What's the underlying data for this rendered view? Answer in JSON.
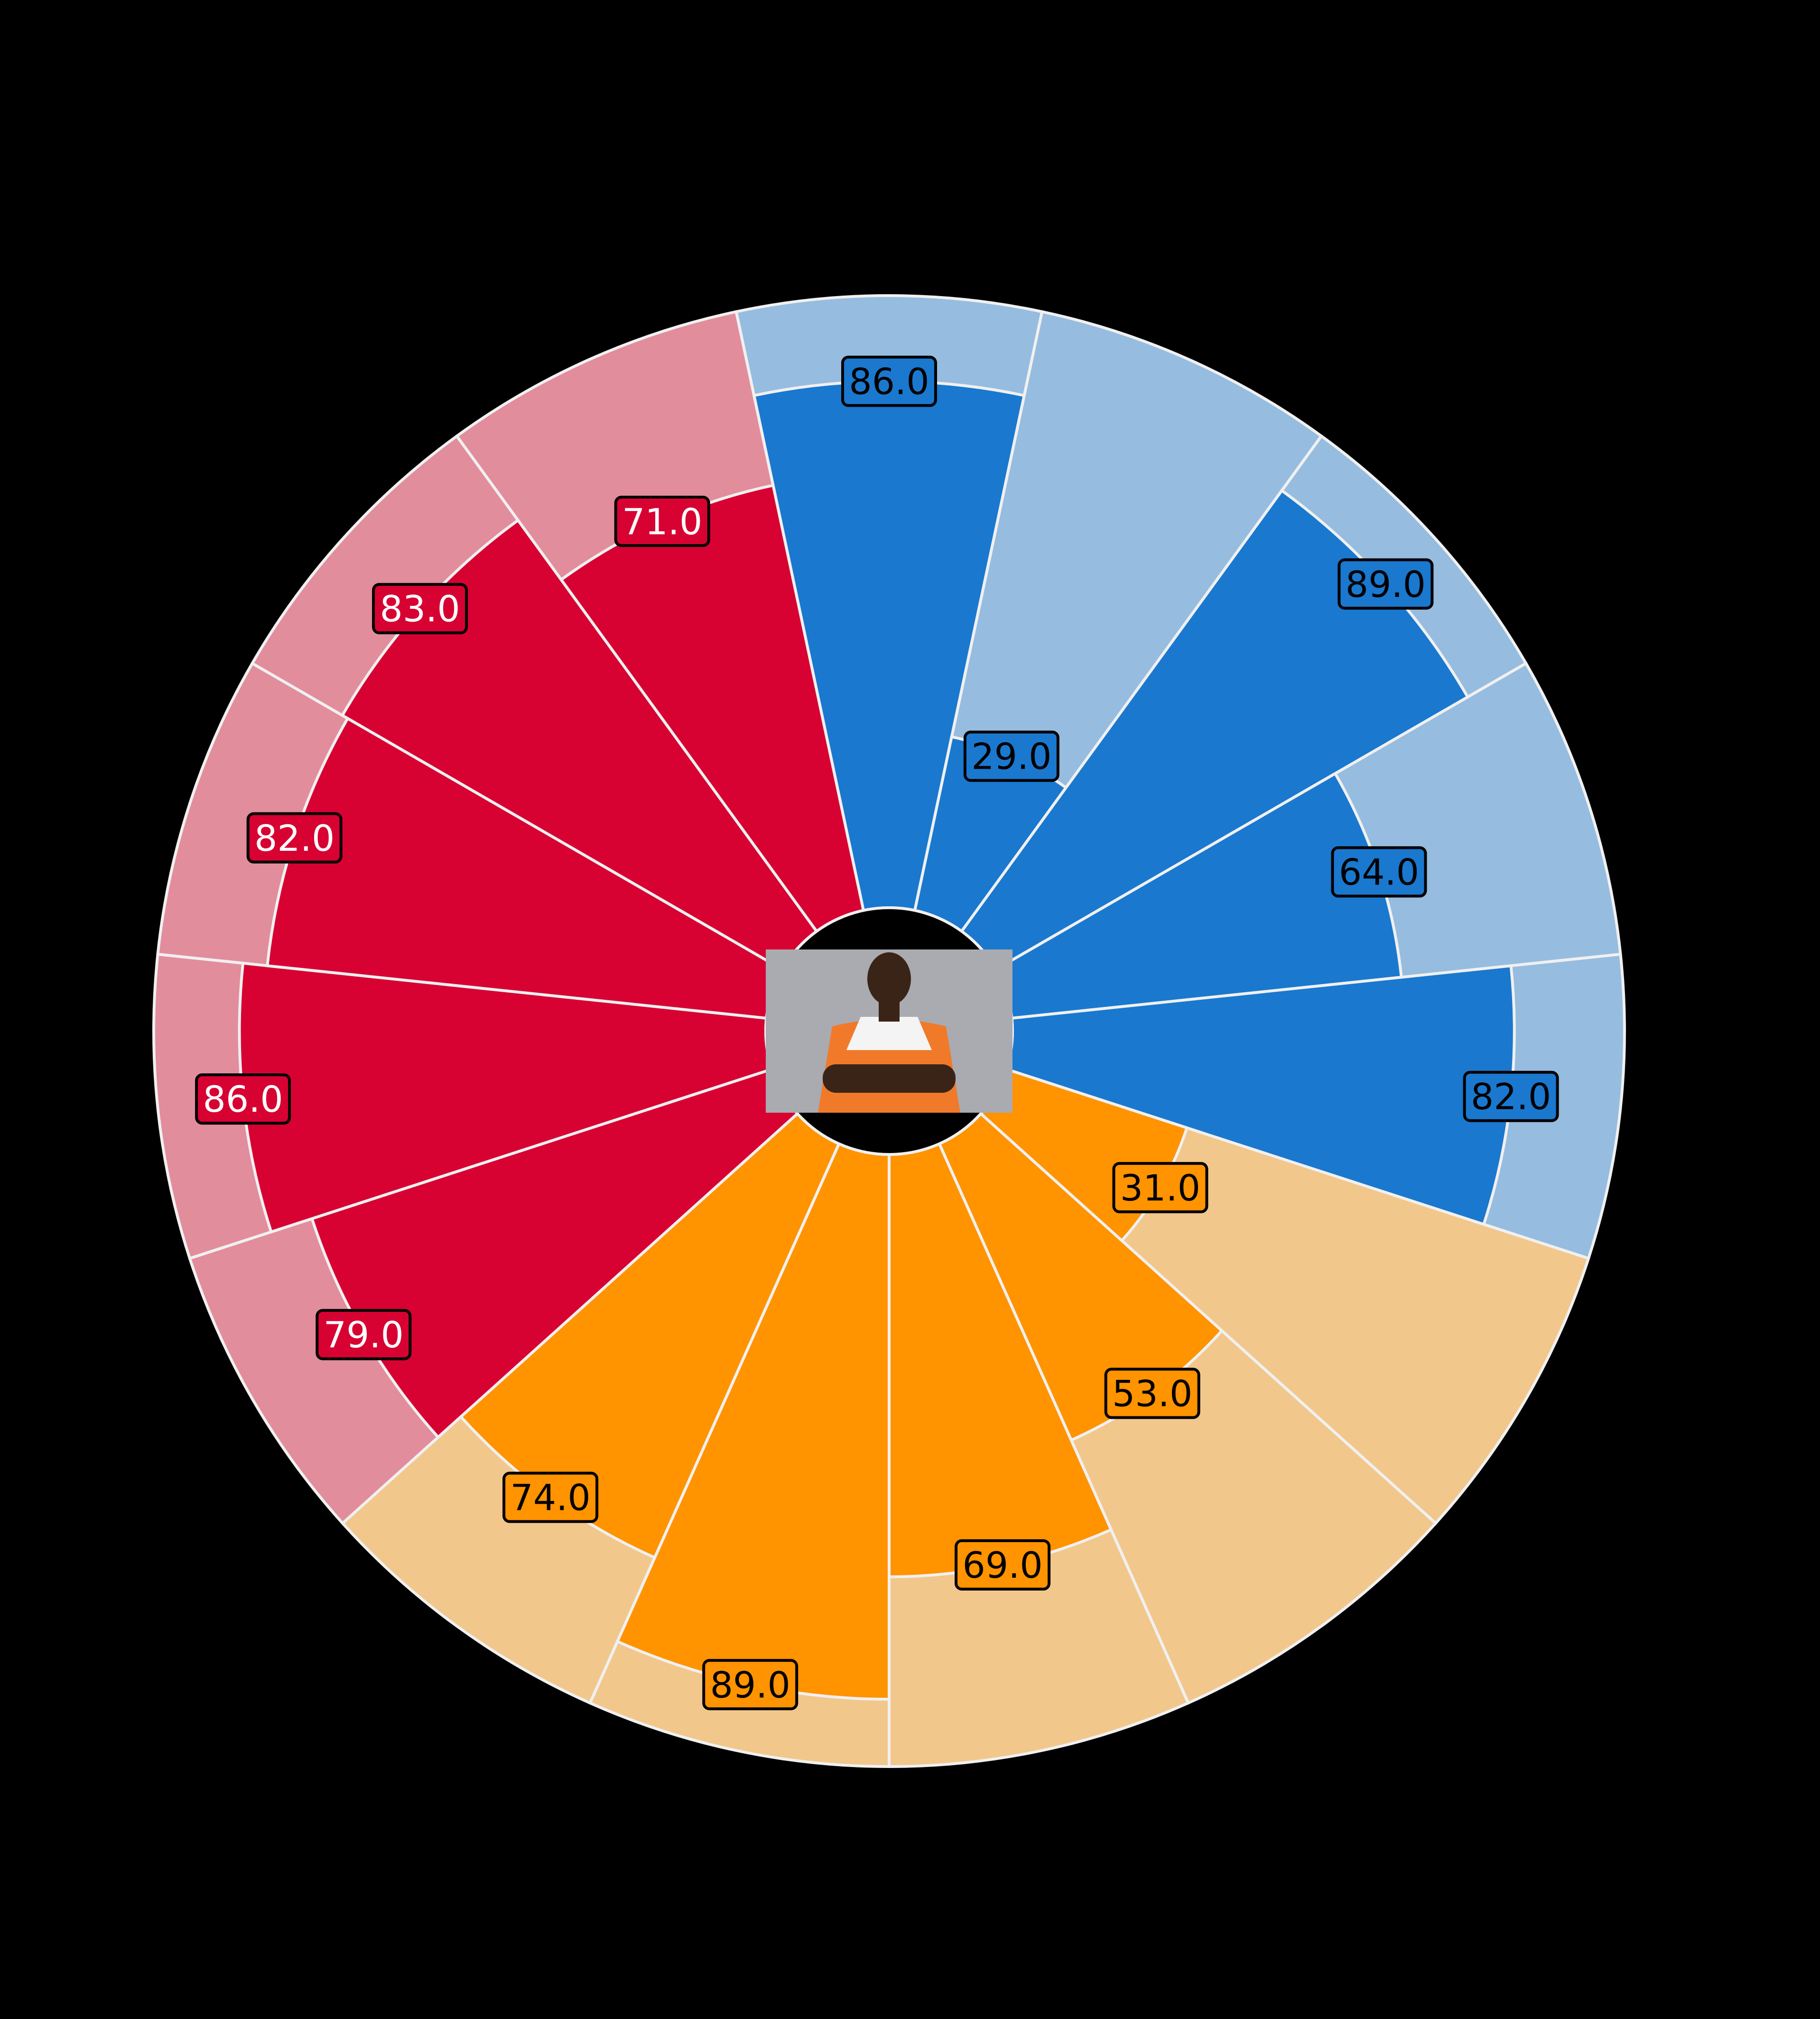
{
  "chart_data": {
    "type": "pizza",
    "title": "",
    "subtitle": "",
    "value_range": [
      0,
      100
    ],
    "center_image": "player-photo",
    "background_color": "#000000",
    "separator_color": "#f0f0f0",
    "segment_order": "clockwise-from-top",
    "series": [
      {
        "group": "blue",
        "color": "#1a78cf",
        "background_color": "#96bce0",
        "label_text_color": "#000000",
        "values": [
          86.0,
          29.0,
          89.0,
          64.0,
          82.0
        ],
        "labels": [
          "86.0",
          "29.0",
          "89.0",
          "64.0",
          "82.0"
        ]
      },
      {
        "group": "orange",
        "color": "#ff9300",
        "background_color": "#f2c78c",
        "label_text_color": "#000000",
        "values": [
          31.0,
          53.0,
          69.0,
          89.0,
          74.0
        ],
        "labels": [
          "31.0",
          "53.0",
          "69.0",
          "89.0",
          "74.0"
        ]
      },
      {
        "group": "red",
        "color": "#d70232",
        "background_color": "#e28d9c",
        "label_text_color": "#ffffff",
        "values": [
          79.0,
          86.0,
          82.0,
          83.0,
          71.0
        ],
        "labels": [
          "79.0",
          "86.0",
          "82.0",
          "83.0",
          "71.0"
        ]
      }
    ]
  }
}
